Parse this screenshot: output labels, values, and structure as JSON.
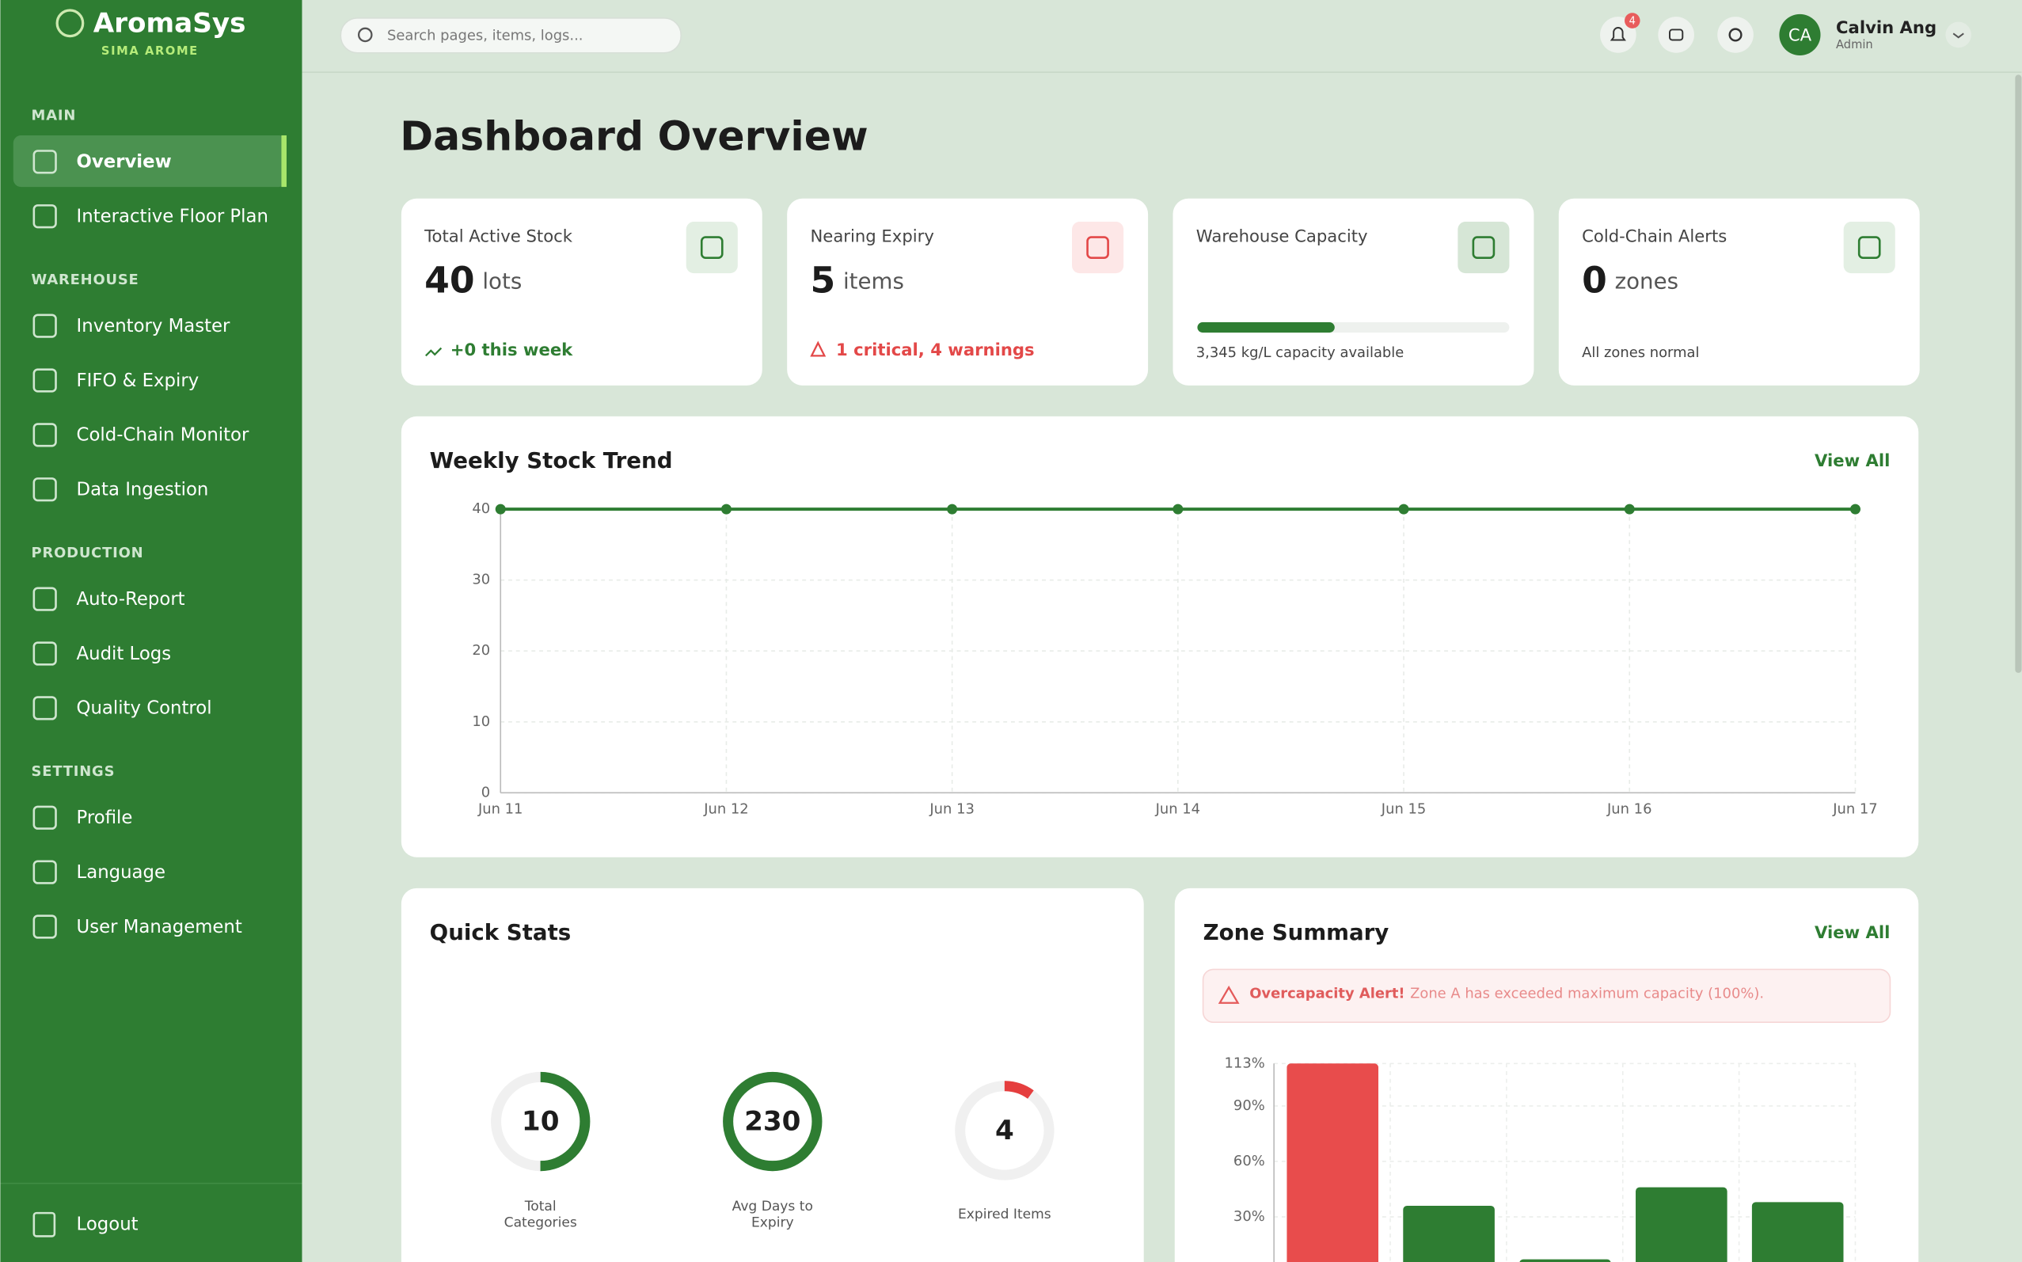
{
  "brand": {
    "name": "AromaSys",
    "tagline": "SIMA AROME"
  },
  "sidebar": {
    "sections": [
      {
        "title": "MAIN",
        "items": [
          "Overview",
          "Interactive Floor Plan"
        ]
      },
      {
        "title": "WAREHOUSE",
        "items": [
          "Inventory Master",
          "FIFO & Expiry",
          "Cold-Chain Monitor",
          "Data Ingestion"
        ]
      },
      {
        "title": "PRODUCTION",
        "items": [
          "Auto-Report",
          "Audit Logs",
          "Quality Control"
        ]
      },
      {
        "title": "SETTINGS",
        "items": [
          "Profile",
          "Language",
          "User Management"
        ]
      }
    ],
    "logout": "Logout"
  },
  "header": {
    "search_placeholder": "Search pages, items, logs...",
    "notification_count": "4",
    "user": {
      "initials": "CA",
      "name": "Calvin Ang",
      "role": "Admin"
    }
  },
  "page_title": "Dashboard Overview",
  "kpis": [
    {
      "title": "Total Active Stock",
      "value": "40",
      "unit": "lots",
      "footer": "+0 this week"
    },
    {
      "title": "Nearing Expiry",
      "value": "5",
      "unit": "items",
      "footer": "1 critical, 4 warnings"
    },
    {
      "title": "Warehouse Capacity",
      "capacity_used_pct": 44,
      "footer": "3,345 kg/L capacity available"
    },
    {
      "title": "Cold-Chain Alerts",
      "value": "0",
      "unit": "zones",
      "footer": "All zones normal"
    }
  ],
  "weekly_trend": {
    "chart_data": {
      "type": "line",
      "title": "Weekly Stock Trend",
      "link": "View All",
      "categories": [
        "Jun 11",
        "Jun 12",
        "Jun 13",
        "Jun 14",
        "Jun 15",
        "Jun 16",
        "Jun 17"
      ],
      "values": [
        40,
        40,
        40,
        40,
        40,
        40,
        40
      ],
      "color": "#2e7d32",
      "ylim": [
        0,
        40
      ],
      "yticks": [
        0,
        10,
        20,
        30,
        40
      ],
      "grid": true
    }
  },
  "quick_stats": {
    "title": "Quick Stats",
    "items": [
      {
        "value": "10",
        "label": "Total Categories",
        "progress": 50,
        "color": "#2e7d32"
      },
      {
        "value": "230",
        "label": "Avg Days to Expiry",
        "progress": 100,
        "color": "#2e7d32"
      },
      {
        "value": "4",
        "label": "Expired Items",
        "progress": 10,
        "color": "#e53e3e"
      }
    ]
  },
  "zone_summary": {
    "title": "Zone Summary",
    "link": "View All",
    "alert_title": "Overcapacity Alert!",
    "alert_text": "Zone A has exceeded maximum capacity (100%).",
    "chart_data": {
      "type": "bar",
      "values": [
        113,
        36,
        7,
        46,
        38
      ],
      "colors": [
        "#e84c4c",
        "#2e7d32",
        "#2e7d32",
        "#2e7d32",
        "#2e7d32"
      ],
      "ylim": [
        0,
        113
      ],
      "yticks": [
        {
          "value": 30,
          "label": "30%"
        },
        {
          "value": 60,
          "label": "60%"
        },
        {
          "value": 90,
          "label": "90%"
        },
        {
          "value": 113,
          "label": "113%"
        }
      ],
      "grid": true
    }
  }
}
